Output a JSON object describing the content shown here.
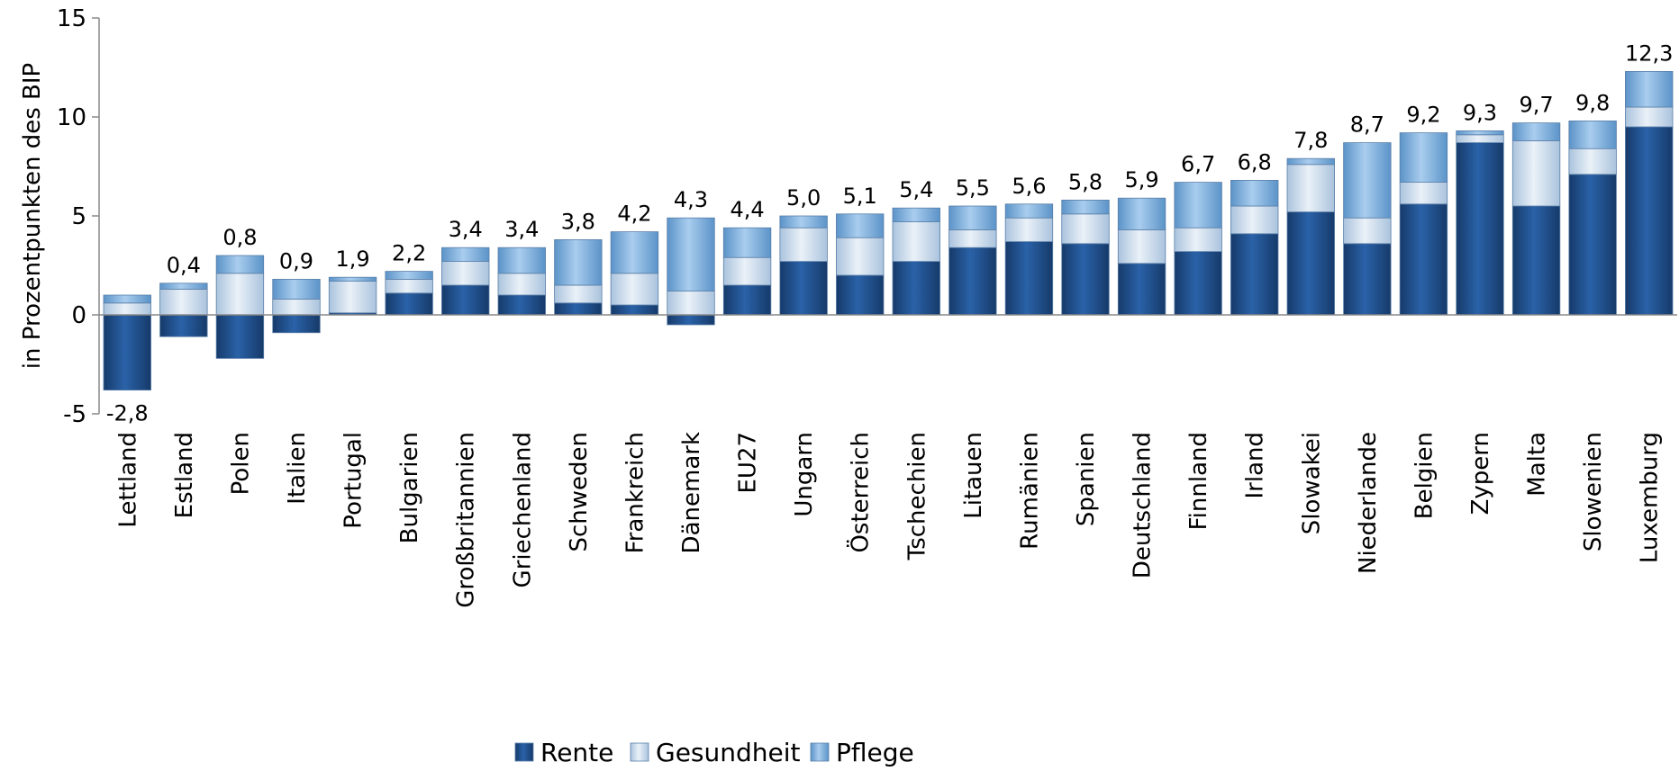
{
  "chart_data": {
    "type": "bar",
    "stacked": true,
    "ylabel": "in Prozentpunkten des BIP",
    "ylim": [
      -5,
      15
    ],
    "yticks": [
      -5,
      0,
      5,
      10,
      15
    ],
    "yticklabels": [
      "-5",
      "0",
      "5",
      "10",
      "15"
    ],
    "legend_position": "bottom",
    "categories": [
      "Lettland",
      "Estland",
      "Polen",
      "Italien",
      "Portugal",
      "Bulgarien",
      "Großbritannien",
      "Griechenland",
      "Schweden",
      "Frankreich",
      "Dänemark",
      "EU27",
      "Ungarn",
      "Österreich",
      "Tschechien",
      "Litauen",
      "Rumänien",
      "Spanien",
      "Deutschland",
      "Finnland",
      "Irland",
      "Slowakei",
      "Niederlande",
      "Belgien",
      "Zypern",
      "Malta",
      "Slowenien",
      "Luxemburg"
    ],
    "series": [
      {
        "name": "Rente",
        "color": "#1f4e8c",
        "values": [
          -3.8,
          -1.1,
          -2.2,
          -0.9,
          0.1,
          1.1,
          1.5,
          1.0,
          0.6,
          0.5,
          -0.5,
          1.5,
          2.7,
          2.0,
          2.7,
          3.4,
          3.7,
          3.6,
          2.6,
          3.2,
          4.1,
          5.2,
          3.6,
          5.6,
          8.7,
          5.5,
          7.1,
          9.5
        ]
      },
      {
        "name": "Gesundheit",
        "color": "#c7d8ea",
        "values": [
          0.6,
          1.3,
          2.1,
          0.8,
          1.6,
          0.7,
          1.2,
          1.1,
          0.9,
          1.6,
          1.2,
          1.4,
          1.7,
          1.9,
          2.0,
          0.9,
          1.2,
          1.5,
          1.7,
          1.2,
          1.4,
          2.4,
          1.3,
          1.1,
          0.4,
          3.3,
          1.3,
          1.0
        ]
      },
      {
        "name": "Pflege",
        "color": "#7fb0dc",
        "values": [
          0.4,
          0.3,
          0.9,
          1.0,
          0.2,
          0.4,
          0.7,
          1.3,
          2.3,
          2.1,
          3.7,
          1.5,
          0.6,
          1.2,
          0.7,
          1.2,
          0.7,
          0.7,
          1.6,
          2.3,
          1.3,
          0.3,
          3.8,
          2.5,
          0.2,
          0.9,
          1.4,
          1.8
        ]
      }
    ],
    "totals": [
      "-2,8",
      "0,4",
      "0,8",
      "0,9",
      "1,9",
      "2,2",
      "3,4",
      "3,4",
      "3,8",
      "4,2",
      "4,3",
      "4,4",
      "5,0",
      "5,1",
      "5,4",
      "5,5",
      "5,6",
      "5,8",
      "5,9",
      "6,7",
      "6,8",
      "7,8",
      "8,7",
      "9,2",
      "9,3",
      "9,7",
      "9,8",
      "12,3"
    ]
  }
}
